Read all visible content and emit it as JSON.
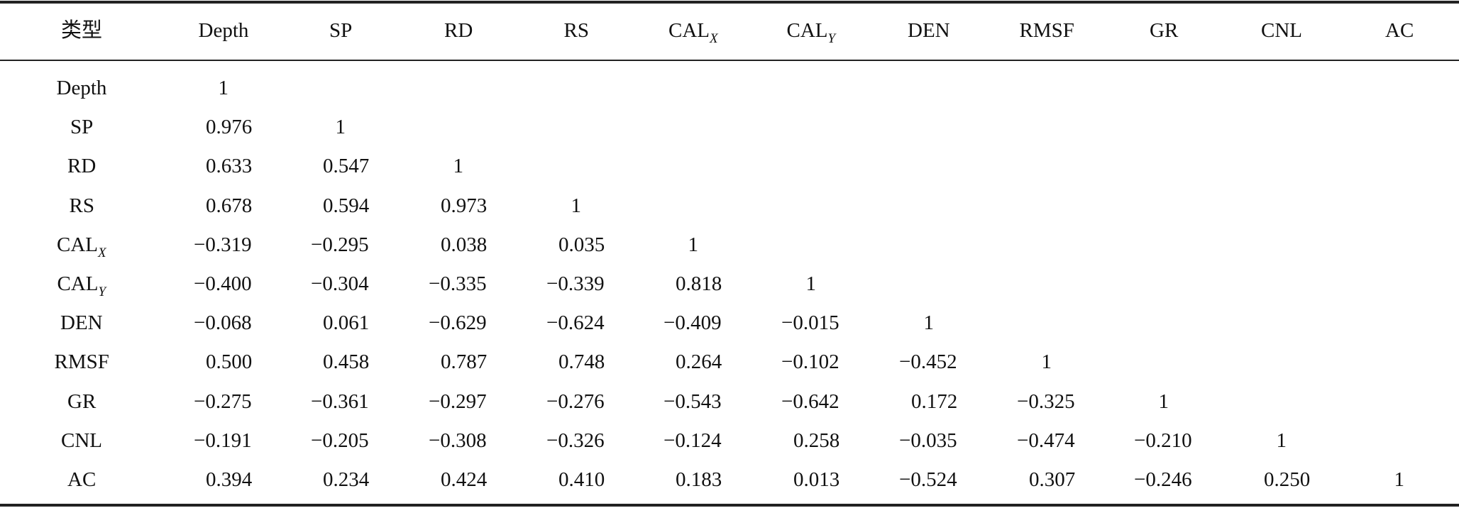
{
  "table": {
    "header": [
      "类型",
      "Depth",
      "SP",
      "RD",
      "RS",
      {
        "text": "CAL",
        "sub": "X"
      },
      {
        "text": "CAL",
        "sub": "Y"
      },
      "DEN",
      "RMSF",
      "GR",
      "CNL",
      "AC"
    ],
    "rows": [
      {
        "label": "Depth",
        "values": [
          "1"
        ]
      },
      {
        "label": "SP",
        "values": [
          "0.976",
          "1"
        ]
      },
      {
        "label": "RD",
        "values": [
          "0.633",
          "0.547",
          "1"
        ]
      },
      {
        "label": "RS",
        "values": [
          "0.678",
          "0.594",
          "0.973",
          "1"
        ]
      },
      {
        "label": {
          "text": "CAL",
          "sub": "X"
        },
        "values": [
          "−0.319",
          "−0.295",
          "0.038",
          "0.035",
          "1"
        ]
      },
      {
        "label": {
          "text": "CAL",
          "sub": "Y"
        },
        "values": [
          "−0.400",
          "−0.304",
          "−0.335",
          "−0.339",
          "0.818",
          "1"
        ]
      },
      {
        "label": "DEN",
        "values": [
          "−0.068",
          "0.061",
          "−0.629",
          "−0.624",
          "−0.409",
          "−0.015",
          "1"
        ]
      },
      {
        "label": "RMSF",
        "values": [
          "0.500",
          "0.458",
          "0.787",
          "0.748",
          "0.264",
          "−0.102",
          "−0.452",
          "1"
        ]
      },
      {
        "label": "GR",
        "values": [
          "−0.275",
          "−0.361",
          "−0.297",
          "−0.276",
          "−0.543",
          "−0.642",
          "0.172",
          "−0.325",
          "1"
        ]
      },
      {
        "label": "CNL",
        "values": [
          "−0.191",
          "−0.205",
          "−0.308",
          "−0.326",
          "−0.124",
          "0.258",
          "−0.035",
          "−0.474",
          "−0.210",
          "1"
        ]
      },
      {
        "label": "AC",
        "values": [
          "0.394",
          "0.234",
          "0.424",
          "0.410",
          "0.183",
          "0.013",
          "−0.524",
          "0.307",
          "−0.246",
          "0.250",
          "1"
        ]
      }
    ]
  }
}
